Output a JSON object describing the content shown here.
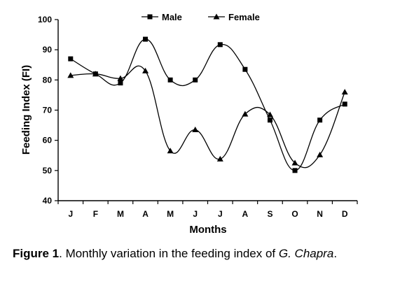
{
  "chart_data": {
    "type": "line",
    "categories": [
      "J",
      "F",
      "M",
      "A",
      "M",
      "J",
      "J",
      "A",
      "S",
      "O",
      "N",
      "D"
    ],
    "series": [
      {
        "name": "Male",
        "marker": "square",
        "values": [
          87,
          82,
          79,
          93.5,
          80,
          80,
          91.7,
          83.5,
          66.7,
          50,
          66.7,
          72
        ]
      },
      {
        "name": "Female",
        "marker": "triangle",
        "values": [
          81.5,
          82,
          80.5,
          83,
          56.5,
          63.5,
          53.8,
          68.7,
          68.5,
          52.5,
          55.2,
          76
        ]
      }
    ],
    "xlabel": "Months",
    "ylabel": "Feeding Index (FI)",
    "ylim": [
      40,
      100
    ],
    "yticks": [
      40,
      50,
      60,
      70,
      80,
      90,
      100
    ],
    "grid": false,
    "legend_position": "top",
    "smooth": true,
    "color": "#000000"
  },
  "caption": {
    "label": "Figure 1",
    "text": ". Monthly variation in the feeding index of ",
    "species": "G. Chapra",
    "end": "."
  }
}
